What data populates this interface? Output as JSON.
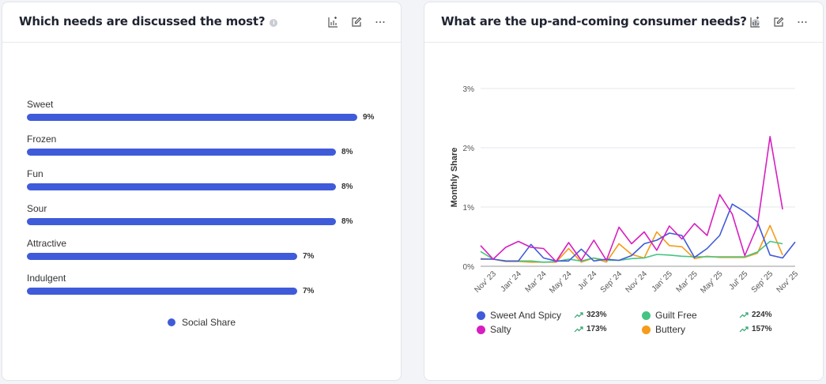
{
  "left_card": {
    "title": "Which needs are discussed the most?",
    "legend_label": "Social Share",
    "legend_color": "#3f5bd9"
  },
  "right_card": {
    "title": "What are the up-and-coming consumer needs?"
  },
  "chart_data": [
    {
      "type": "bar",
      "orientation": "horizontal",
      "categories": [
        "Sweet",
        "Frozen",
        "Fun",
        "Sour",
        "Attractive",
        "Indulgent"
      ],
      "values": [
        9,
        8,
        8,
        8,
        7,
        7
      ],
      "value_labels": [
        "9%",
        "8%",
        "8%",
        "8%",
        "7%",
        "7%"
      ],
      "series": [
        {
          "name": "Social Share",
          "values": [
            9,
            8,
            8,
            8,
            7,
            7
          ]
        }
      ],
      "legend_position": "bottom",
      "grid": false
    },
    {
      "type": "line",
      "ylabel": "Monthly Share",
      "yticks": [
        "0%",
        "1%",
        "2%",
        "3%"
      ],
      "ylim": [
        0,
        3
      ],
      "x": [
        "Oct' 23",
        "Nov' 23",
        "Dec' 23",
        "Jan' 24",
        "Feb' 24",
        "Mar' 24",
        "Apr' 24",
        "May' 24",
        "Jun' 24",
        "Jul' 24",
        "Aug' 24",
        "Sep' 24",
        "Oct' 24",
        "Nov' 24",
        "Dec' 24",
        "Jan' 25",
        "Feb' 25",
        "Mar' 25",
        "Apr' 25",
        "May' 25",
        "Jun' 25",
        "Jul' 25",
        "Aug' 25",
        "Sep' 25",
        "Oct' 25",
        "Nov' 25"
      ],
      "xtick_labels": [
        "Nov' 23",
        "Jan' 24",
        "Mar' 24",
        "May' 24",
        "Jul' 24",
        "Sep' 24",
        "Nov' 24",
        "Jan' 25",
        "Mar' 25",
        "May' 25",
        "Jul' 25",
        "Sep' 25",
        "Nov' 25"
      ],
      "grid": true,
      "legend_position": "bottom",
      "series": [
        {
          "name": "Sweet And Spicy",
          "color": "#3f5bd9",
          "growth": "323%",
          "values": [
            0.12,
            0.12,
            0.09,
            0.09,
            0.37,
            0.14,
            0.09,
            0.09,
            0.29,
            0.09,
            0.12,
            0.1,
            0.18,
            0.38,
            0.44,
            0.56,
            0.52,
            0.15,
            0.3,
            0.52,
            1.05,
            0.92,
            0.75,
            0.19,
            0.14,
            0.41
          ]
        },
        {
          "name": "Salty",
          "color": "#d71fbf",
          "growth": "173%",
          "values": [
            0.35,
            0.12,
            0.32,
            0.42,
            0.32,
            0.3,
            0.08,
            0.4,
            0.1,
            0.44,
            0.1,
            0.66,
            0.38,
            0.58,
            0.27,
            0.68,
            0.46,
            0.72,
            0.52,
            1.21,
            0.88,
            0.18,
            0.68,
            2.19,
            0.96,
            null
          ]
        },
        {
          "name": "Guilt Free",
          "color": "#45c483",
          "growth": "224%",
          "values": [
            0.25,
            0.12,
            0.09,
            0.09,
            0.09,
            0.07,
            0.08,
            0.12,
            0.09,
            0.14,
            0.1,
            0.1,
            0.13,
            0.14,
            0.2,
            0.19,
            0.17,
            0.16,
            0.16,
            0.16,
            0.16,
            0.16,
            0.24,
            0.42,
            0.38,
            null
          ]
        },
        {
          "name": "Buttery",
          "color": "#f59c1a",
          "growth": "157%",
          "values": [
            0.13,
            0.12,
            0.08,
            0.08,
            0.07,
            0.07,
            0.07,
            0.3,
            0.07,
            0.14,
            0.07,
            0.38,
            0.2,
            0.14,
            0.58,
            0.35,
            0.33,
            0.13,
            0.17,
            0.15,
            0.15,
            0.15,
            0.22,
            0.69,
            0.19,
            null
          ]
        }
      ]
    }
  ]
}
